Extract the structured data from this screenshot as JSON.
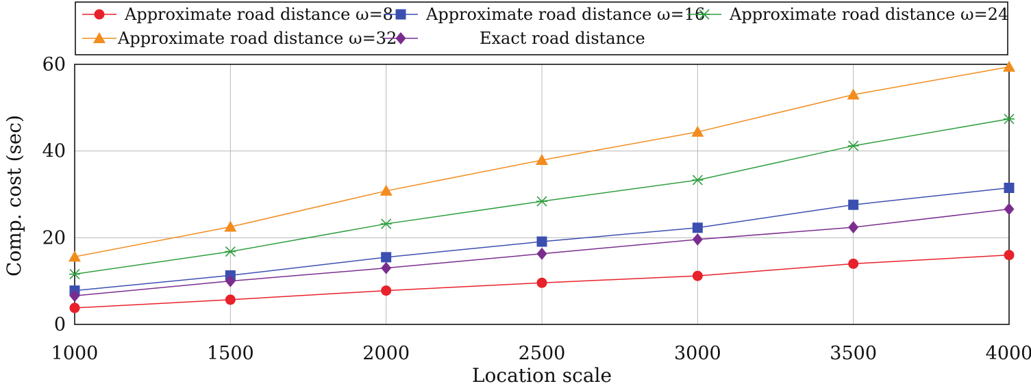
{
  "chart_data": {
    "type": "line",
    "title": "",
    "xlabel": "Location scale",
    "ylabel": "Comp. cost (sec)",
    "x": [
      1000,
      1500,
      2000,
      2500,
      3000,
      3500,
      4000
    ],
    "xlim": [
      1000,
      4000
    ],
    "ylim": [
      0,
      60
    ],
    "xticks": [
      "1000",
      "1500",
      "2000",
      "2500",
      "3000",
      "3500",
      "4000"
    ],
    "yticks": [
      "0",
      "20",
      "40",
      "60"
    ],
    "grid": true,
    "legend_position": "top",
    "series": [
      {
        "name": "Approximate road distance ω=8",
        "values": [
          3.8,
          5.7,
          7.8,
          9.6,
          11.2,
          14.0,
          16.0
        ],
        "color": "#e8212b",
        "marker": "circle"
      },
      {
        "name": "Approximate road distance ω=16",
        "values": [
          7.8,
          11.3,
          15.5,
          19.1,
          22.3,
          27.6,
          31.5
        ],
        "color": "#3b4fb0",
        "marker": "square"
      },
      {
        "name": "Approximate road distance ω=24",
        "values": [
          11.6,
          16.8,
          23.2,
          28.4,
          33.3,
          41.2,
          47.4
        ],
        "color": "#2e9e3e",
        "marker": "asterisk"
      },
      {
        "name": "Approximate road distance ω=32",
        "values": [
          15.6,
          22.5,
          30.8,
          37.9,
          44.4,
          53.0,
          59.4
        ],
        "color": "#f28c1e",
        "marker": "triangle"
      },
      {
        "name": "Exact road distance",
        "values": [
          6.6,
          10.0,
          13.0,
          16.3,
          19.6,
          22.4,
          26.6
        ],
        "color": "#7b2d8e",
        "marker": "diamond"
      }
    ]
  }
}
